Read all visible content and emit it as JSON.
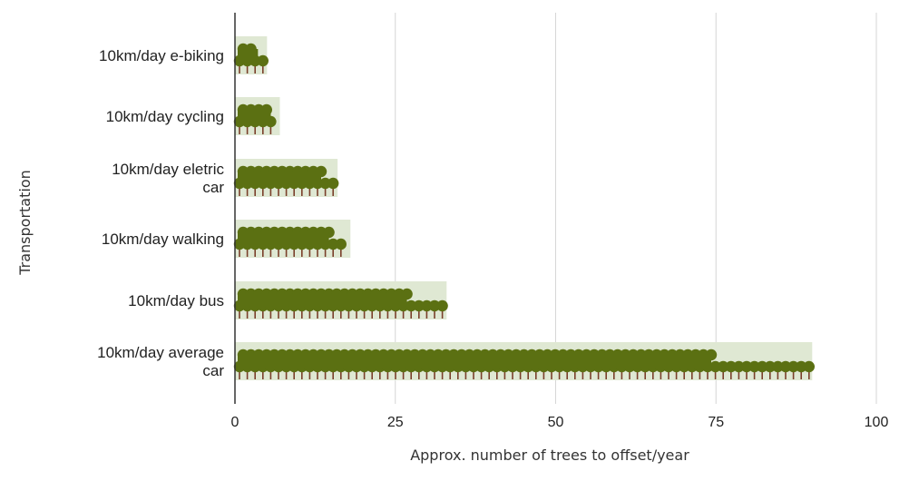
{
  "chart_data": {
    "type": "bar",
    "orientation": "horizontal",
    "categories": [
      "10km/day e-biking",
      "10km/day cycling",
      "10km/day eletric car",
      "10km/day walking",
      "10km/day bus",
      "10km/day average car"
    ],
    "category_lines": [
      [
        "10km/day e-biking"
      ],
      [
        "10km/day cycling"
      ],
      [
        "10km/day eletric",
        "car"
      ],
      [
        "10km/day walking"
      ],
      [
        "10km/day bus"
      ],
      [
        "10km/day average",
        "car"
      ]
    ],
    "values": [
      5,
      7,
      16,
      18,
      33,
      90
    ],
    "xlabel": "Approx. number of trees to offset/year",
    "ylabel": "Transportation",
    "xlim": [
      0,
      100
    ],
    "xticks": [
      0,
      25,
      50,
      75,
      100
    ],
    "grid": true,
    "legend": "none",
    "marker": "tree-icon",
    "colors": {
      "bar_background": "#dfe8d3",
      "tree_crown": "#5b7012",
      "tree_trunk": "#7a3f2a",
      "grid": "#d6d6d6",
      "axis": "#333333"
    }
  }
}
